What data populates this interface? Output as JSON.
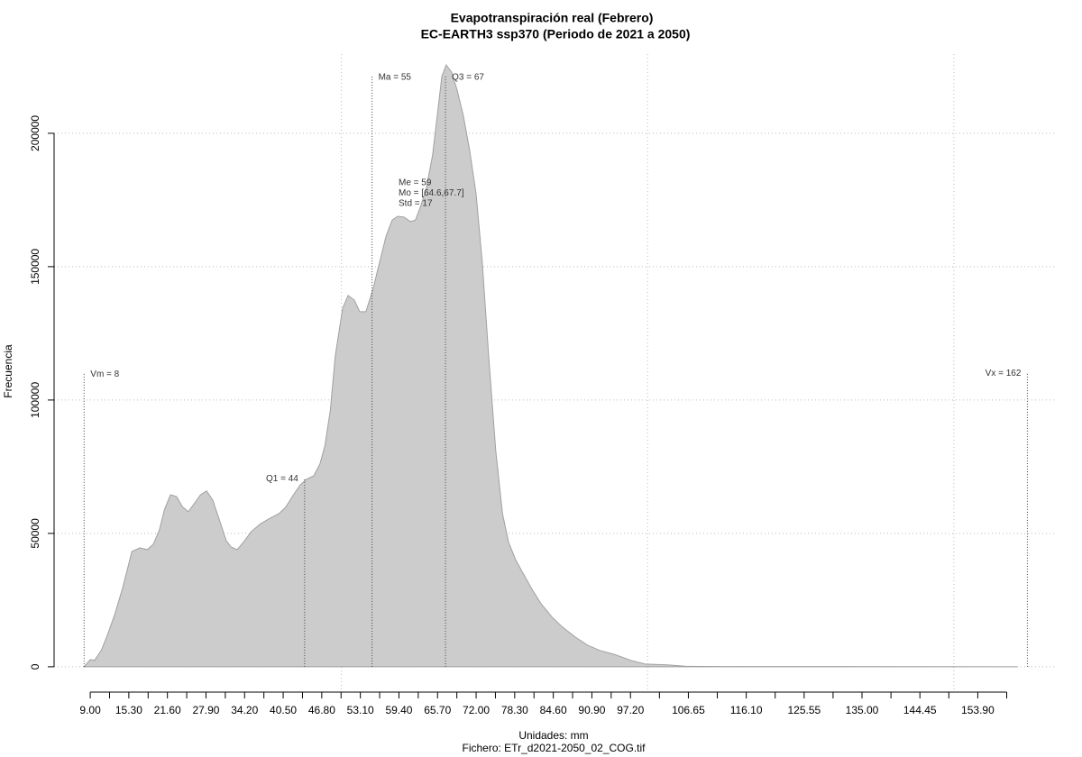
{
  "chart_data": {
    "type": "area",
    "title": "Evapotranspiración real (Febrero)",
    "subtitle": "EC-EARTH3 ssp370 (Periodo de 2021 a 2050)",
    "xlabel": "Unidades: mm",
    "caption": "Fichero: ETr_d2021-2050_02_COG.tif",
    "ylabel": "Frecuencia",
    "color": "#cccccc",
    "line_color": "#a0a0a0",
    "x": [
      8,
      9,
      9.7,
      10.8,
      11.9,
      13.1,
      14.3,
      15.8,
      17.1,
      18.3,
      19.3,
      20.3,
      21.1,
      22.1,
      23.1,
      24.0,
      25.0,
      26.1,
      27.0,
      28.0,
      29.0,
      30.0,
      31.2,
      32.0,
      33.0,
      34.2,
      35.3,
      36.7,
      38.1,
      39.8,
      40.9,
      42.1,
      43.3,
      44.3,
      45.5,
      46.5,
      47.3,
      48.2,
      49.0,
      50.2,
      51.1,
      52.1,
      53.0,
      54.0,
      55.2,
      56.2,
      57.3,
      58.3,
      59.2,
      60.2,
      61.3,
      62.1,
      62.9,
      63.9,
      64.9,
      65.8,
      66.4,
      67.1,
      68.0,
      68.9,
      69.9,
      70.9,
      72.0,
      73.0,
      74.1,
      75.2,
      76.3,
      77.3,
      78.5,
      79.8,
      81.1,
      82.6,
      84.4,
      86.1,
      88.2,
      90.2,
      92.2,
      94.5,
      97.3,
      99.6,
      103.2,
      106.1,
      112,
      160.3
    ],
    "values": [
      0,
      2700,
      2400,
      6100,
      12500,
      20300,
      29700,
      43200,
      44600,
      43900,
      45900,
      51300,
      58800,
      64500,
      63800,
      60100,
      58100,
      61500,
      64500,
      65900,
      62500,
      55700,
      47300,
      44900,
      43900,
      47300,
      50700,
      53400,
      55400,
      57400,
      59800,
      64200,
      68200,
      70300,
      71600,
      76000,
      82800,
      96300,
      116500,
      134400,
      139200,
      137500,
      133100,
      133100,
      141900,
      151300,
      161500,
      167500,
      168900,
      168600,
      166900,
      167500,
      172300,
      179700,
      191900,
      209400,
      221300,
      225600,
      222900,
      216200,
      206700,
      194200,
      177300,
      152000,
      114900,
      81100,
      57400,
      46600,
      39900,
      34500,
      29100,
      23600,
      18600,
      14900,
      11100,
      8100,
      6100,
      4700,
      2400,
      1000,
      700,
      200,
      100,
      0
    ],
    "xlim": [
      3.1,
      166.5
    ],
    "ylim": [
      -9500,
      229700
    ],
    "xticks": [
      {
        "value": 9,
        "label": "9.00"
      },
      {
        "value": 15.3,
        "label": "15.30"
      },
      {
        "value": 21.6,
        "label": "21.60"
      },
      {
        "value": 27.9,
        "label": "27.90"
      },
      {
        "value": 34.2,
        "label": "34.20"
      },
      {
        "value": 40.5,
        "label": "40.50"
      },
      {
        "value": 46.8,
        "label": "46.80"
      },
      {
        "value": 53.1,
        "label": "53.10"
      },
      {
        "value": 59.4,
        "label": "59.40"
      },
      {
        "value": 65.7,
        "label": "65.70"
      },
      {
        "value": 72,
        "label": "72.00"
      },
      {
        "value": 78.3,
        "label": "78.30"
      },
      {
        "value": 84.6,
        "label": "84.60"
      },
      {
        "value": 90.9,
        "label": "90.90"
      },
      {
        "value": 97.2,
        "label": "97.20"
      },
      {
        "value": 106.65,
        "label": "106.65"
      },
      {
        "value": 116.1,
        "label": "116.10"
      },
      {
        "value": 125.55,
        "label": "125.55"
      },
      {
        "value": 135,
        "label": "135.00"
      },
      {
        "value": 144.45,
        "label": "144.45"
      },
      {
        "value": 153.9,
        "label": "153.90"
      }
    ],
    "xminorticks": [
      12.15,
      18.45,
      24.75,
      31.05,
      37.35,
      43.65,
      49.95,
      56.25,
      62.55,
      68.85,
      75.15,
      81.45,
      87.75,
      94.05,
      101.925,
      111.375,
      120.825,
      130.275,
      139.725,
      149.175,
      158.625
    ],
    "yticks": [
      0,
      50000,
      100000,
      150000,
      200000
    ],
    "xgrid": [
      50,
      100,
      150
    ],
    "grid": true,
    "markers": [
      {
        "label": "Vm = 8",
        "x": 8,
        "y": 110000,
        "side": "right"
      },
      {
        "label": "Q1 = 44",
        "x": 44,
        "y": 70500,
        "side": "left"
      },
      {
        "label": "Ma = 55",
        "x": 55,
        "y": 221300,
        "side": "right"
      },
      {
        "label": "Q3 = 67",
        "x": 67,
        "y": 221300,
        "side": "right"
      },
      {
        "label": "Vx = 162",
        "x": 162,
        "y": 110000,
        "side": "left"
      }
    ],
    "stats": [
      "Me = 59",
      "Mo = [64.6,67.7]",
      "Std = 17"
    ]
  }
}
